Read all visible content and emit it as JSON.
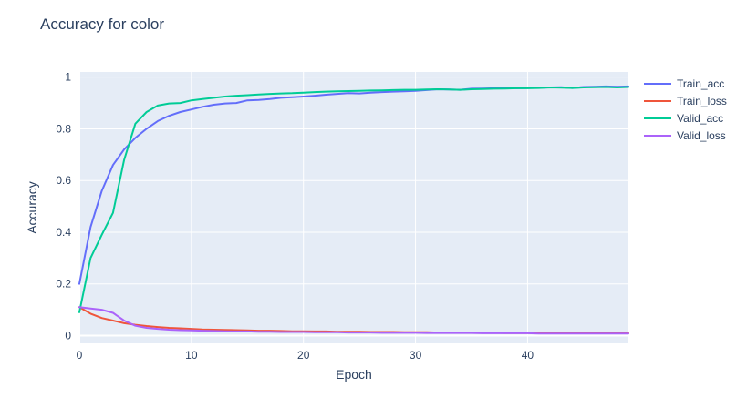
{
  "chart_data": {
    "type": "line",
    "title": "Accuracy for color",
    "xlabel": "Epoch",
    "ylabel": "Accuracy",
    "xlim": [
      0,
      49
    ],
    "ylim": [
      -0.03,
      1.02
    ],
    "xticks": [
      0,
      10,
      20,
      30,
      40
    ],
    "yticks": [
      0,
      0.2,
      0.4,
      0.6,
      0.8,
      1
    ],
    "ytick_labels": [
      "0",
      "0.2",
      "0.4",
      "0.6",
      "0.8",
      "1"
    ],
    "grid": true,
    "legend_position": "right",
    "series": [
      {
        "name": "Train_acc",
        "color": "#636efa",
        "x": [
          0,
          1,
          2,
          3,
          4,
          5,
          6,
          7,
          8,
          9,
          10,
          11,
          12,
          13,
          14,
          15,
          16,
          17,
          18,
          19,
          20,
          21,
          22,
          23,
          24,
          25,
          26,
          27,
          28,
          29,
          30,
          31,
          32,
          33,
          34,
          35,
          36,
          37,
          38,
          39,
          40,
          41,
          42,
          43,
          44,
          45,
          46,
          47,
          48,
          49
        ],
        "y": [
          0.2,
          0.42,
          0.56,
          0.66,
          0.72,
          0.765,
          0.8,
          0.83,
          0.85,
          0.865,
          0.875,
          0.885,
          0.893,
          0.898,
          0.9,
          0.91,
          0.912,
          0.915,
          0.92,
          0.922,
          0.925,
          0.928,
          0.932,
          0.935,
          0.938,
          0.937,
          0.94,
          0.942,
          0.944,
          0.945,
          0.947,
          0.95,
          0.953,
          0.952,
          0.951,
          0.955,
          0.956,
          0.957,
          0.958,
          0.957,
          0.958,
          0.959,
          0.96,
          0.961,
          0.958,
          0.962,
          0.963,
          0.964,
          0.963,
          0.964
        ]
      },
      {
        "name": "Train_loss",
        "color": "#ef553b",
        "x": [
          0,
          1,
          2,
          3,
          4,
          5,
          6,
          7,
          8,
          9,
          10,
          11,
          12,
          13,
          14,
          15,
          16,
          17,
          18,
          19,
          20,
          21,
          22,
          23,
          24,
          25,
          26,
          27,
          28,
          29,
          30,
          31,
          32,
          33,
          34,
          35,
          36,
          37,
          38,
          39,
          40,
          41,
          42,
          43,
          44,
          45,
          46,
          47,
          48,
          49
        ],
        "y": [
          0.11,
          0.085,
          0.068,
          0.058,
          0.048,
          0.042,
          0.037,
          0.033,
          0.03,
          0.028,
          0.026,
          0.024,
          0.023,
          0.022,
          0.021,
          0.02,
          0.019,
          0.019,
          0.018,
          0.017,
          0.017,
          0.016,
          0.016,
          0.015,
          0.015,
          0.015,
          0.014,
          0.014,
          0.014,
          0.013,
          0.013,
          0.013,
          0.012,
          0.012,
          0.012,
          0.011,
          0.011,
          0.011,
          0.01,
          0.01,
          0.01,
          0.01,
          0.01,
          0.01,
          0.009,
          0.009,
          0.009,
          0.009,
          0.009,
          0.009
        ]
      },
      {
        "name": "Valid_acc",
        "color": "#00cc96",
        "x": [
          0,
          1,
          2,
          3,
          4,
          5,
          6,
          7,
          8,
          9,
          10,
          11,
          12,
          13,
          14,
          15,
          16,
          17,
          18,
          19,
          20,
          21,
          22,
          23,
          24,
          25,
          26,
          27,
          28,
          29,
          30,
          31,
          32,
          33,
          34,
          35,
          36,
          37,
          38,
          39,
          40,
          41,
          42,
          43,
          44,
          45,
          46,
          47,
          48,
          49
        ],
        "y": [
          0.09,
          0.3,
          0.39,
          0.475,
          0.68,
          0.82,
          0.865,
          0.89,
          0.898,
          0.9,
          0.91,
          0.915,
          0.92,
          0.925,
          0.928,
          0.93,
          0.933,
          0.935,
          0.937,
          0.938,
          0.94,
          0.942,
          0.944,
          0.945,
          0.946,
          0.947,
          0.948,
          0.949,
          0.95,
          0.951,
          0.951,
          0.952,
          0.953,
          0.952,
          0.951,
          0.953,
          0.954,
          0.955,
          0.956,
          0.957,
          0.957,
          0.958,
          0.96,
          0.959,
          0.958,
          0.96,
          0.961,
          0.962,
          0.96,
          0.962
        ]
      },
      {
        "name": "Valid_loss",
        "color": "#ab63fa",
        "x": [
          0,
          1,
          2,
          3,
          4,
          5,
          6,
          7,
          8,
          9,
          10,
          11,
          12,
          13,
          14,
          15,
          16,
          17,
          18,
          19,
          20,
          21,
          22,
          23,
          24,
          25,
          26,
          27,
          28,
          29,
          30,
          31,
          32,
          33,
          34,
          35,
          36,
          37,
          38,
          39,
          40,
          41,
          42,
          43,
          44,
          45,
          46,
          47,
          48,
          49
        ],
        "y": [
          0.11,
          0.105,
          0.1,
          0.088,
          0.058,
          0.038,
          0.03,
          0.026,
          0.023,
          0.021,
          0.02,
          0.019,
          0.018,
          0.017,
          0.016,
          0.016,
          0.015,
          0.015,
          0.014,
          0.014,
          0.014,
          0.013,
          0.013,
          0.013,
          0.012,
          0.012,
          0.012,
          0.011,
          0.011,
          0.011,
          0.011,
          0.01,
          0.01,
          0.01,
          0.01,
          0.01,
          0.009,
          0.009,
          0.009,
          0.009,
          0.009,
          0.008,
          0.008,
          0.008,
          0.008,
          0.008,
          0.008,
          0.008,
          0.008,
          0.008
        ]
      }
    ]
  }
}
